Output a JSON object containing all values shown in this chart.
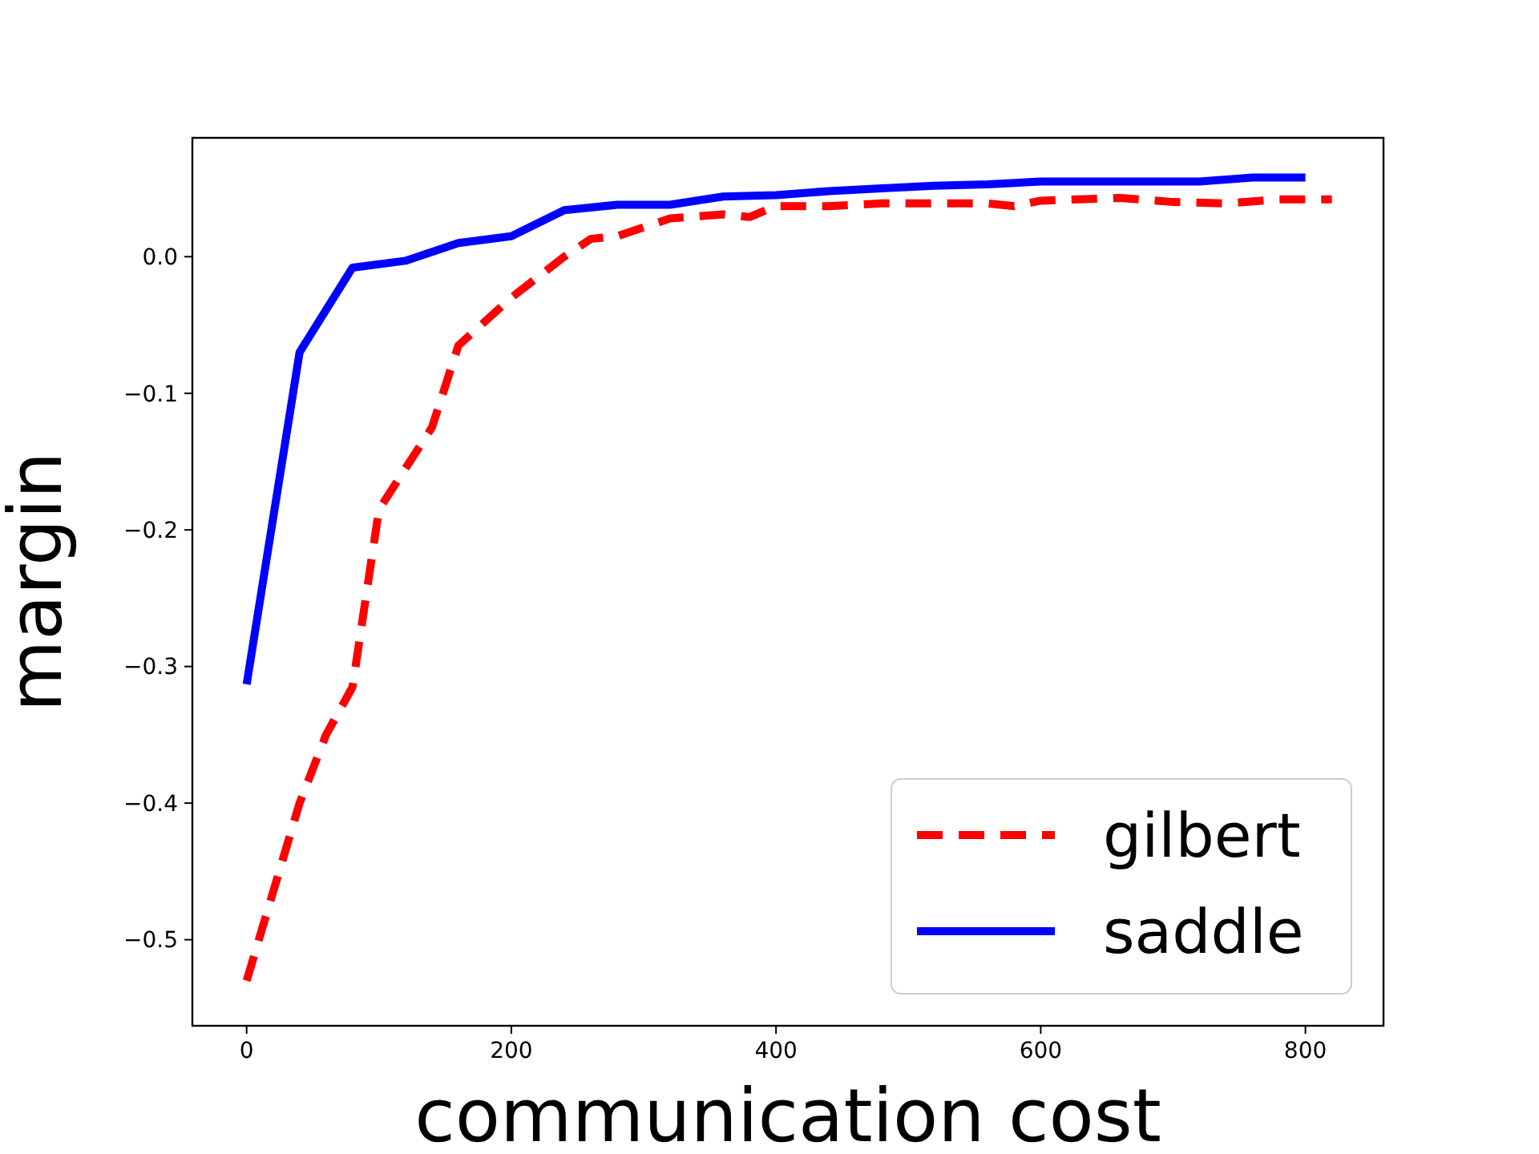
{
  "chart_data": {
    "type": "line",
    "xlabel": "communication cost",
    "ylabel": "margin",
    "xlim": [
      -41,
      859
    ],
    "ylim": [
      -0.563,
      0.087
    ],
    "xticks": [
      0,
      200,
      400,
      600,
      800
    ],
    "yticks": [
      {
        "value": -0.5,
        "label": "−0.5"
      },
      {
        "value": -0.4,
        "label": "−0.4"
      },
      {
        "value": -0.3,
        "label": "−0.3"
      },
      {
        "value": -0.2,
        "label": "−0.2"
      },
      {
        "value": -0.1,
        "label": "−0.1"
      },
      {
        "value": 0,
        "label": "0.0"
      }
    ],
    "legend": "bottom right",
    "series": [
      {
        "name": "gilbert",
        "color": "#ff0000",
        "line_style": "dashed",
        "x": [
          0,
          40,
          60,
          80,
          100,
          120,
          140,
          160,
          200,
          240,
          260,
          280,
          320,
          360,
          380,
          400,
          440,
          480,
          520,
          560,
          580,
          600,
          660,
          700,
          740,
          780,
          820
        ],
        "values": [
          -0.53,
          -0.4,
          -0.35,
          -0.315,
          -0.185,
          -0.155,
          -0.125,
          -0.065,
          -0.03,
          0,
          0.013,
          0.015,
          0.028,
          0.031,
          0.029,
          0.037,
          0.037,
          0.039,
          0.039,
          0.039,
          0.037,
          0.041,
          0.043,
          0.04,
          0.039,
          0.042,
          0.042
        ]
      },
      {
        "name": "saddle",
        "color": "#0000ff",
        "line_style": "solid",
        "x": [
          0,
          40,
          80,
          120,
          160,
          200,
          240,
          280,
          320,
          360,
          400,
          440,
          480,
          520,
          560,
          600,
          640,
          680,
          720,
          760,
          800
        ],
        "values": [
          -0.313,
          -0.07,
          -0.008,
          -0.003,
          0.01,
          0.015,
          0.034,
          0.038,
          0.038,
          0.044,
          0.045,
          0.048,
          0.05,
          0.052,
          0.053,
          0.055,
          0.055,
          0.055,
          0.055,
          0.058,
          0.058
        ]
      }
    ]
  }
}
